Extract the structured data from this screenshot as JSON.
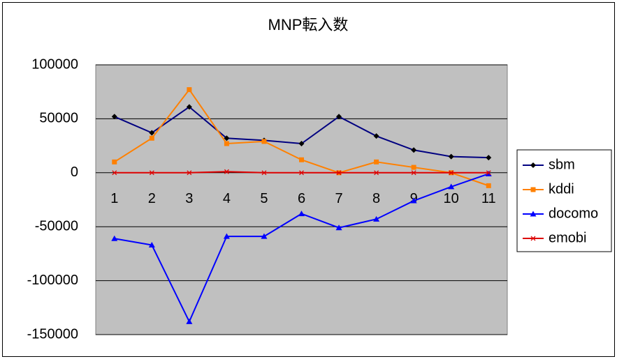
{
  "chart_data": {
    "type": "line",
    "title": "MNP転入数",
    "categories": [
      "1",
      "2",
      "3",
      "4",
      "5",
      "6",
      "7",
      "8",
      "9",
      "10",
      "11"
    ],
    "series": [
      {
        "name": "sbm",
        "color": "#000080",
        "marker_color": "#000000",
        "marker": "diamond",
        "values": [
          52000,
          37000,
          61000,
          32000,
          30000,
          27000,
          52000,
          34000,
          21000,
          15000,
          14000
        ]
      },
      {
        "name": "kddi",
        "color": "#ff8000",
        "marker_color": "#ff8000",
        "marker": "square",
        "values": [
          10000,
          32000,
          77000,
          27000,
          29000,
          12000,
          0,
          10000,
          5000,
          0,
          -12000
        ]
      },
      {
        "name": "docomo",
        "color": "#0000ff",
        "marker_color": "#0000ff",
        "marker": "triangle",
        "values": [
          -61000,
          -67000,
          -138000,
          -59000,
          -59000,
          -38000,
          -51000,
          -43000,
          -26000,
          -13000,
          -1000
        ]
      },
      {
        "name": "emobi",
        "color": "#dd0000",
        "marker_color": "#dd0000",
        "marker": "x",
        "values": [
          0,
          0,
          0,
          1000,
          0,
          0,
          0,
          0,
          0,
          0,
          0
        ]
      }
    ],
    "ylim": [
      -150000,
      100000
    ],
    "yticks": [
      -150000,
      -100000,
      -50000,
      0,
      50000,
      100000
    ],
    "grid": true,
    "plot_background": "#c0c0c0",
    "legend": "right"
  }
}
